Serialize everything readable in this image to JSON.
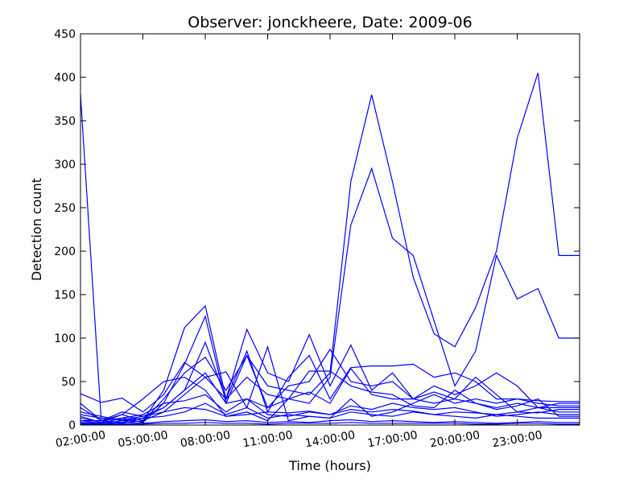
{
  "chart_data": {
    "type": "line",
    "title": "Observer: jonckheere, Date: 2009-06",
    "xlabel": "Time (hours)",
    "ylabel": "Detection count",
    "xlim": [
      2,
      26
    ],
    "ylim": [
      0,
      450
    ],
    "yticks": [
      0,
      50,
      100,
      150,
      200,
      250,
      300,
      350,
      400,
      450
    ],
    "xticks": [
      2,
      5,
      8,
      11,
      14,
      17,
      20,
      23
    ],
    "xtick_labels": [
      "02:00:00",
      "05:00:00",
      "08:00:00",
      "11:00:00",
      "14:00:00",
      "17:00:00",
      "20:00:00",
      "23:00:00"
    ],
    "grid": false,
    "line_color": "#0000ff",
    "x": [
      2,
      3,
      4,
      5,
      6,
      7,
      8,
      9,
      10,
      11,
      12,
      13,
      14,
      15,
      16,
      17,
      18,
      19,
      20,
      21,
      22,
      23,
      24,
      25,
      26
    ],
    "series": [
      {
        "values": [
          380,
          5,
          3,
          8,
          20,
          40,
          60,
          25,
          80,
          45,
          40,
          35,
          60,
          280,
          380,
          280,
          170,
          105,
          90,
          135,
          200,
          330,
          405,
          195,
          195
        ]
      },
      {
        "values": [
          10,
          3,
          2,
          5,
          15,
          35,
          55,
          30,
          55,
          35,
          30,
          25,
          55,
          230,
          295,
          215,
          195,
          120,
          45,
          85,
          195,
          145,
          157,
          100,
          100
        ]
      },
      {
        "values": [
          20,
          5,
          12,
          5,
          40,
          112,
          137,
          30,
          110,
          60,
          50,
          104,
          45,
          92,
          40,
          60,
          30,
          45,
          35,
          45,
          60,
          45,
          20,
          15,
          15
        ]
      },
      {
        "values": [
          5,
          2,
          8,
          3,
          25,
          70,
          125,
          25,
          30,
          20,
          30,
          38,
          25,
          65,
          35,
          30,
          30,
          38,
          30,
          55,
          35,
          15,
          20,
          25,
          25
        ]
      },
      {
        "values": [
          5,
          5,
          15,
          10,
          20,
          40,
          95,
          30,
          85,
          15,
          55,
          80,
          30,
          66,
          68,
          68,
          70,
          55,
          60,
          50,
          30,
          30,
          28,
          27,
          27
        ]
      },
      {
        "values": [
          15,
          10,
          5,
          4,
          30,
          60,
          78,
          40,
          80,
          20,
          45,
          50,
          87,
          50,
          45,
          50,
          30,
          25,
          30,
          25,
          20,
          25,
          20,
          20,
          20
        ]
      },
      {
        "values": [
          36,
          26,
          31,
          15,
          35,
          72,
          55,
          61,
          20,
          90,
          5,
          10,
          8,
          30,
          10,
          15,
          25,
          35,
          25,
          30,
          25,
          30,
          25,
          22,
          22
        ]
      },
      {
        "values": [
          8,
          3,
          12,
          30,
          50,
          55,
          40,
          10,
          15,
          5,
          30,
          62,
          62,
          45,
          38,
          35,
          22,
          20,
          40,
          25,
          18,
          22,
          30,
          10,
          10
        ]
      },
      {
        "values": [
          25,
          5,
          8,
          12,
          25,
          28,
          35,
          15,
          30,
          12,
          10,
          15,
          12,
          22,
          18,
          25,
          20,
          18,
          20,
          15,
          10,
          12,
          15,
          12,
          12
        ]
      },
      {
        "values": [
          3,
          2,
          5,
          8,
          10,
          15,
          25,
          12,
          20,
          8,
          12,
          10,
          8,
          15,
          12,
          10,
          15,
          12,
          10,
          8,
          12,
          10,
          8,
          8,
          8
        ]
      },
      {
        "values": [
          12,
          8,
          6,
          10,
          15,
          20,
          18,
          10,
          12,
          15,
          14,
          16,
          12,
          18,
          15,
          18,
          16,
          12,
          15,
          14,
          12,
          15,
          14,
          18,
          18
        ]
      },
      {
        "values": [
          2,
          1,
          3,
          2,
          4,
          5,
          6,
          4,
          5,
          3,
          4,
          3,
          5,
          6,
          4,
          5,
          4,
          3,
          4,
          3,
          2,
          3,
          4,
          3,
          3
        ]
      },
      {
        "values": [
          1,
          1,
          1,
          1,
          2,
          2,
          3,
          2,
          2,
          1,
          2,
          2,
          2,
          3,
          2,
          2,
          2,
          2,
          2,
          1,
          1,
          2,
          2,
          1,
          1
        ]
      }
    ]
  }
}
